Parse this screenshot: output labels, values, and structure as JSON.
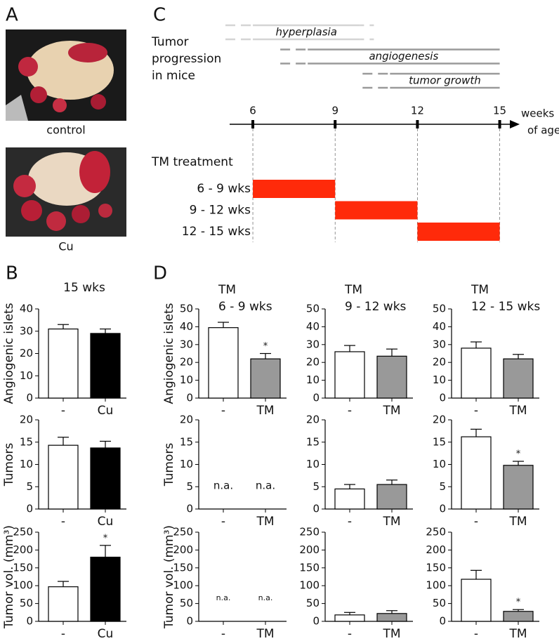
{
  "panel_labels": [
    "A",
    "B",
    "C",
    "D"
  ],
  "images": [
    {
      "caption": "control"
    },
    {
      "caption": "Cu"
    }
  ],
  "chart_data": [
    {
      "type": "timeline",
      "title": [
        "Tumor",
        "progression",
        "in mice"
      ],
      "xlabel": [
        "weeks",
        "of age"
      ],
      "xlim": [
        5,
        15.6
      ],
      "xticks": [
        6,
        9,
        12,
        15
      ],
      "phases": [
        {
          "name": "hyperplasia",
          "range": [
            5,
            10.5
          ],
          "color": "#d4d4d4",
          "fade": "both"
        },
        {
          "name": "angiogenesis",
          "range": [
            7,
            15
          ],
          "color": "#9a9a9a",
          "fade": "start"
        },
        {
          "name": "tumor growth",
          "range": [
            10,
            15
          ],
          "color": "#9a9a9a",
          "fade": "start"
        }
      ],
      "treatment_title": "TM treatment",
      "treatment_color": "#ff2a0a",
      "treatments": [
        {
          "name": "6 - 9 wks",
          "range": [
            6,
            9
          ]
        },
        {
          "name": "9 - 12 wks",
          "range": [
            9,
            12
          ]
        },
        {
          "name": "12 - 15 wks",
          "range": [
            12,
            15
          ]
        }
      ]
    },
    {
      "type": "bar",
      "title": [
        "15 wks"
      ],
      "ylabel": "Angiogenic islets",
      "categories": [
        "-",
        "Cu"
      ],
      "values": [
        31,
        29
      ],
      "errors": [
        2,
        2
      ],
      "colors": [
        "#ffffff",
        "#000000"
      ],
      "ylim": [
        0,
        40
      ],
      "yticks": [
        0,
        10,
        20,
        30,
        40
      ]
    },
    {
      "type": "bar",
      "ylabel": "Tumors",
      "categories": [
        "-",
        "Cu"
      ],
      "values": [
        14.3,
        13.7
      ],
      "errors": [
        1.8,
        1.5
      ],
      "colors": [
        "#ffffff",
        "#000000"
      ],
      "ylim": [
        0,
        20
      ],
      "yticks": [
        0,
        5,
        10,
        15,
        20
      ]
    },
    {
      "type": "bar",
      "ylabel": "Tumor vol. (mm³)",
      "categories": [
        "-",
        "Cu"
      ],
      "values": [
        97,
        180
      ],
      "errors": [
        15,
        33
      ],
      "significance": [
        null,
        "*"
      ],
      "colors": [
        "#ffffff",
        "#000000"
      ],
      "ylim": [
        0,
        250
      ],
      "yticks": [
        0,
        50,
        100,
        150,
        200,
        250
      ]
    },
    {
      "type": "bar",
      "title": [
        "TM",
        "6 - 9 wks"
      ],
      "ylabel": "Angiogenic islets",
      "categories": [
        "-",
        "TM"
      ],
      "values": [
        39.5,
        22
      ],
      "errors": [
        3,
        3
      ],
      "significance": [
        null,
        "*"
      ],
      "colors": [
        "#ffffff",
        "#999999"
      ],
      "ylim": [
        0,
        50
      ],
      "yticks": [
        0,
        10,
        20,
        30,
        40,
        50
      ]
    },
    {
      "type": "bar",
      "ylabel": "Tumors",
      "categories": [
        "-",
        "TM"
      ],
      "values": [
        null,
        null
      ],
      "value_labels": [
        "n.a.",
        "n.a."
      ],
      "colors": [
        "#ffffff",
        "#999999"
      ],
      "ylim": [
        0,
        20
      ],
      "yticks": [
        0,
        5,
        10,
        15,
        20
      ]
    },
    {
      "type": "bar",
      "ylabel": "Tumor vol. (mm³)",
      "categories": [
        "-",
        "TM"
      ],
      "values": [
        null,
        null
      ],
      "value_labels": [
        "n.a.",
        "n.a."
      ],
      "colors": [
        "#ffffff",
        "#999999"
      ],
      "ylim": [
        0,
        250
      ],
      "yticks": [
        0,
        50,
        100,
        150,
        200,
        250
      ]
    },
    {
      "type": "bar",
      "title": [
        "TM",
        "9 - 12 wks"
      ],
      "categories": [
        "-",
        "TM"
      ],
      "values": [
        26,
        23.5
      ],
      "errors": [
        3.5,
        4
      ],
      "colors": [
        "#ffffff",
        "#999999"
      ],
      "ylim": [
        0,
        50
      ],
      "yticks": [
        0,
        10,
        20,
        30,
        40,
        50
      ]
    },
    {
      "type": "bar",
      "categories": [
        "-",
        "TM"
      ],
      "values": [
        4.5,
        5.5
      ],
      "errors": [
        1,
        1
      ],
      "colors": [
        "#ffffff",
        "#999999"
      ],
      "ylim": [
        0,
        20
      ],
      "yticks": [
        0,
        5,
        10,
        15,
        20
      ]
    },
    {
      "type": "bar",
      "categories": [
        "-",
        "TM"
      ],
      "values": [
        18,
        22
      ],
      "errors": [
        7,
        8
      ],
      "colors": [
        "#ffffff",
        "#999999"
      ],
      "ylim": [
        0,
        250
      ],
      "yticks": [
        0,
        50,
        100,
        150,
        200,
        250
      ]
    },
    {
      "type": "bar",
      "title": [
        "TM",
        "12 - 15 wks"
      ],
      "categories": [
        "-",
        "TM"
      ],
      "values": [
        28,
        22
      ],
      "errors": [
        3.5,
        2.5
      ],
      "colors": [
        "#ffffff",
        "#999999"
      ],
      "ylim": [
        0,
        50
      ],
      "yticks": [
        0,
        10,
        20,
        30,
        40,
        50
      ]
    },
    {
      "type": "bar",
      "categories": [
        "-",
        "TM"
      ],
      "values": [
        16.2,
        9.8
      ],
      "errors": [
        1.7,
        0.9
      ],
      "significance": [
        null,
        "*"
      ],
      "colors": [
        "#ffffff",
        "#999999"
      ],
      "ylim": [
        0,
        20
      ],
      "yticks": [
        0,
        5,
        10,
        15,
        20
      ]
    },
    {
      "type": "bar",
      "categories": [
        "-",
        "TM"
      ],
      "values": [
        118,
        28
      ],
      "errors": [
        25,
        5
      ],
      "significance": [
        null,
        "*"
      ],
      "colors": [
        "#ffffff",
        "#999999"
      ],
      "ylim": [
        0,
        250
      ],
      "yticks": [
        0,
        50,
        100,
        150,
        200,
        250
      ]
    }
  ]
}
